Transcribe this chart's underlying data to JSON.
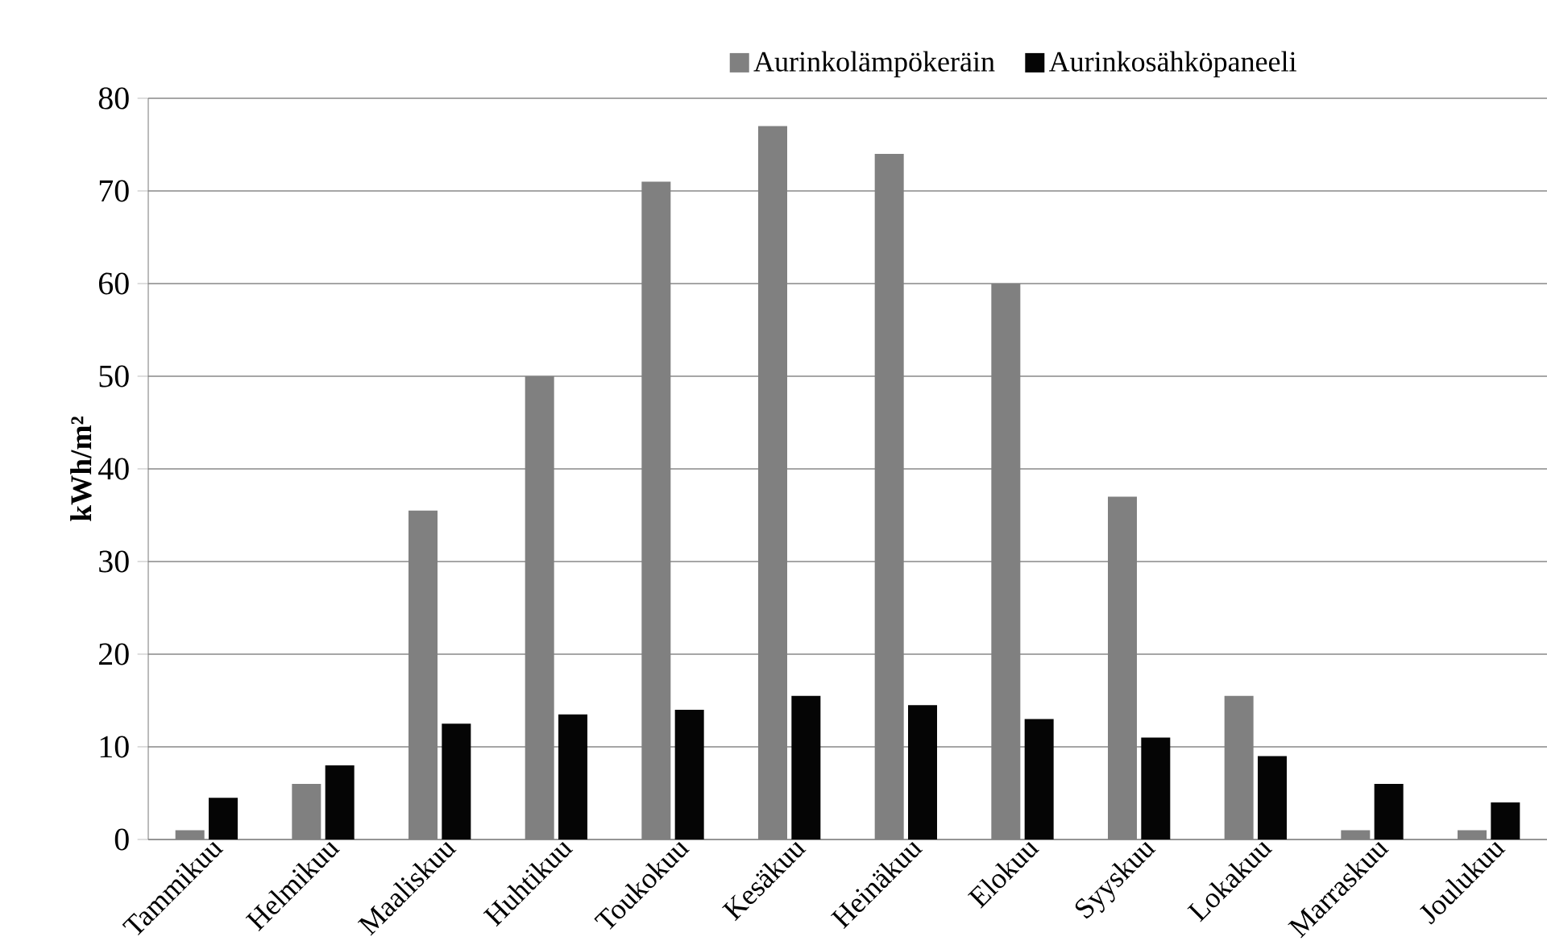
{
  "chart_data": {
    "type": "bar",
    "ylabel": "kWh/m²",
    "categories": [
      "Tammikuu",
      "Helmikuu",
      "Maaliskuu",
      "Huhtikuu",
      "Toukokuu",
      "Kesäkuu",
      "Heinäkuu",
      "Elokuu",
      "Syyskuu",
      "Lokakuu",
      "Marraskuu",
      "Joulukuu"
    ],
    "series": [
      {
        "name": "Aurinkolämpökeräin",
        "color": "#808080",
        "values": [
          1,
          6,
          35.5,
          50,
          71,
          77,
          74,
          60,
          37,
          15.5,
          1,
          1
        ]
      },
      {
        "name": "Aurinkosähköpaneeli",
        "color": "#050505",
        "values": [
          4.5,
          8,
          12.5,
          13.5,
          14,
          15.5,
          14.5,
          13,
          11,
          9,
          6,
          4
        ]
      }
    ],
    "ylim": [
      0,
      80
    ],
    "yticks": [
      0,
      10,
      20,
      30,
      40,
      50,
      60,
      70,
      80
    ],
    "grid": "y",
    "legend": "top"
  }
}
